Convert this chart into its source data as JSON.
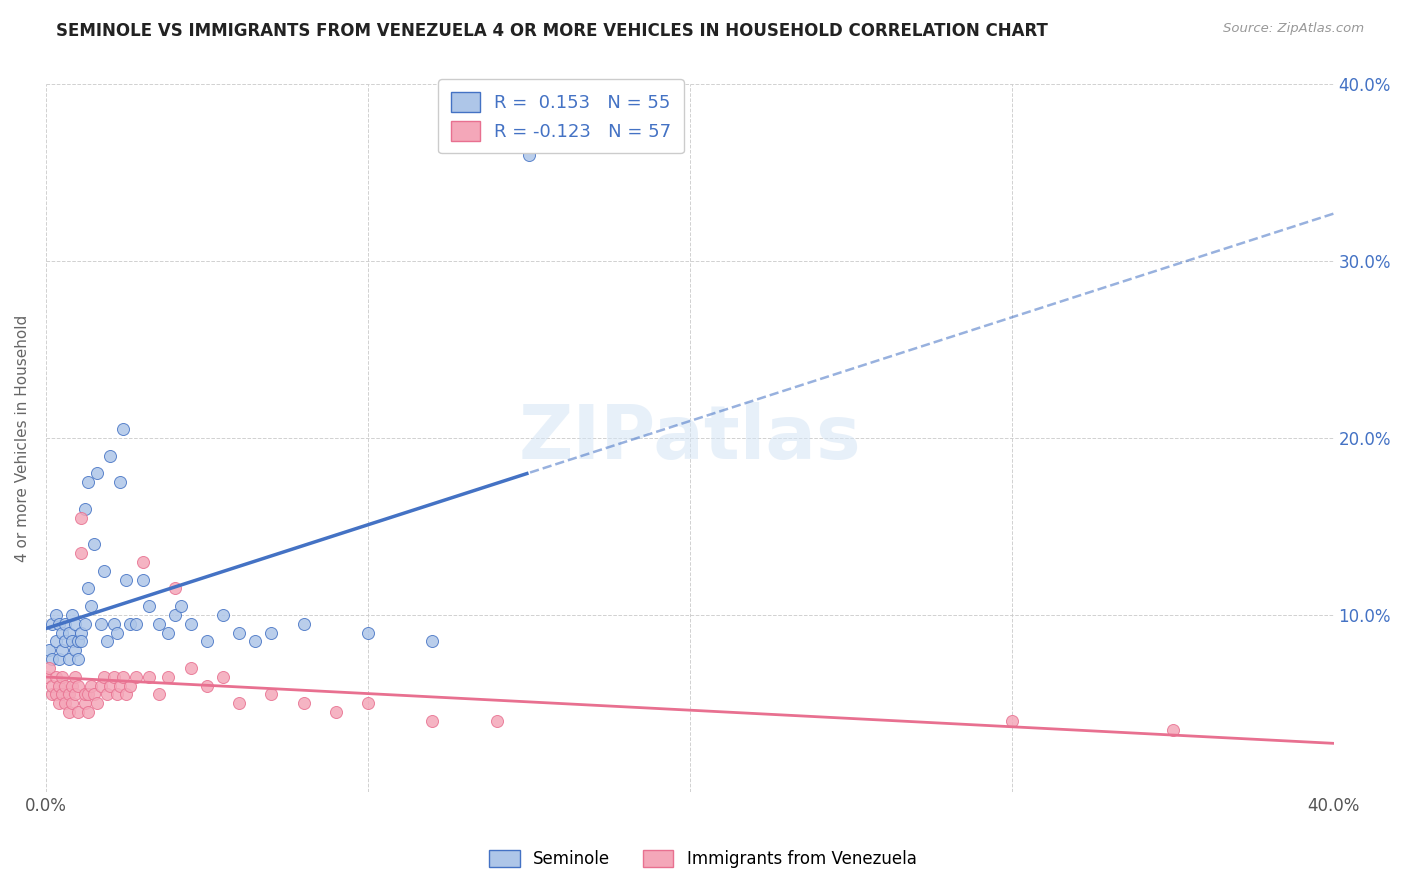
{
  "title": "SEMINOLE VS IMMIGRANTS FROM VENEZUELA 4 OR MORE VEHICLES IN HOUSEHOLD CORRELATION CHART",
  "source": "Source: ZipAtlas.com",
  "ylabel": "4 or more Vehicles in Household",
  "xlim": [
    0.0,
    0.4
  ],
  "ylim": [
    0.0,
    0.4
  ],
  "legend_label1": "Seminole",
  "legend_label2": "Immigrants from Venezuela",
  "R1": 0.153,
  "N1": 55,
  "R2": -0.123,
  "N2": 57,
  "color1": "#aec6e8",
  "color2": "#f4a7b9",
  "line_color1": "#4472c4",
  "line_color2": "#e87090",
  "background_color": "#ffffff",
  "seminole_x": [
    0.001,
    0.002,
    0.002,
    0.003,
    0.003,
    0.004,
    0.004,
    0.005,
    0.005,
    0.006,
    0.006,
    0.007,
    0.007,
    0.008,
    0.008,
    0.009,
    0.009,
    0.01,
    0.01,
    0.011,
    0.011,
    0.012,
    0.012,
    0.013,
    0.013,
    0.014,
    0.015,
    0.016,
    0.017,
    0.018,
    0.019,
    0.02,
    0.021,
    0.022,
    0.023,
    0.024,
    0.025,
    0.026,
    0.028,
    0.03,
    0.032,
    0.035,
    0.038,
    0.04,
    0.042,
    0.045,
    0.05,
    0.055,
    0.06,
    0.065,
    0.07,
    0.08,
    0.1,
    0.12,
    0.15
  ],
  "seminole_y": [
    0.08,
    0.095,
    0.075,
    0.085,
    0.1,
    0.075,
    0.095,
    0.08,
    0.09,
    0.085,
    0.095,
    0.075,
    0.09,
    0.085,
    0.1,
    0.08,
    0.095,
    0.085,
    0.075,
    0.09,
    0.085,
    0.095,
    0.16,
    0.175,
    0.115,
    0.105,
    0.14,
    0.18,
    0.095,
    0.125,
    0.085,
    0.19,
    0.095,
    0.09,
    0.175,
    0.205,
    0.12,
    0.095,
    0.095,
    0.12,
    0.105,
    0.095,
    0.09,
    0.1,
    0.105,
    0.095,
    0.085,
    0.1,
    0.09,
    0.085,
    0.09,
    0.095,
    0.09,
    0.085,
    0.36
  ],
  "venezuela_x": [
    0.0,
    0.001,
    0.002,
    0.002,
    0.003,
    0.003,
    0.004,
    0.004,
    0.005,
    0.005,
    0.006,
    0.006,
    0.007,
    0.007,
    0.008,
    0.008,
    0.009,
    0.009,
    0.01,
    0.01,
    0.011,
    0.011,
    0.012,
    0.012,
    0.013,
    0.013,
    0.014,
    0.015,
    0.016,
    0.017,
    0.018,
    0.019,
    0.02,
    0.021,
    0.022,
    0.023,
    0.024,
    0.025,
    0.026,
    0.028,
    0.03,
    0.032,
    0.035,
    0.038,
    0.04,
    0.045,
    0.05,
    0.055,
    0.06,
    0.07,
    0.08,
    0.09,
    0.1,
    0.12,
    0.14,
    0.3,
    0.35
  ],
  "venezuela_y": [
    0.065,
    0.07,
    0.055,
    0.06,
    0.055,
    0.065,
    0.05,
    0.06,
    0.055,
    0.065,
    0.05,
    0.06,
    0.045,
    0.055,
    0.06,
    0.05,
    0.055,
    0.065,
    0.045,
    0.06,
    0.155,
    0.135,
    0.05,
    0.055,
    0.045,
    0.055,
    0.06,
    0.055,
    0.05,
    0.06,
    0.065,
    0.055,
    0.06,
    0.065,
    0.055,
    0.06,
    0.065,
    0.055,
    0.06,
    0.065,
    0.13,
    0.065,
    0.055,
    0.065,
    0.115,
    0.07,
    0.06,
    0.065,
    0.05,
    0.055,
    0.05,
    0.045,
    0.05,
    0.04,
    0.04,
    0.04,
    0.035
  ]
}
